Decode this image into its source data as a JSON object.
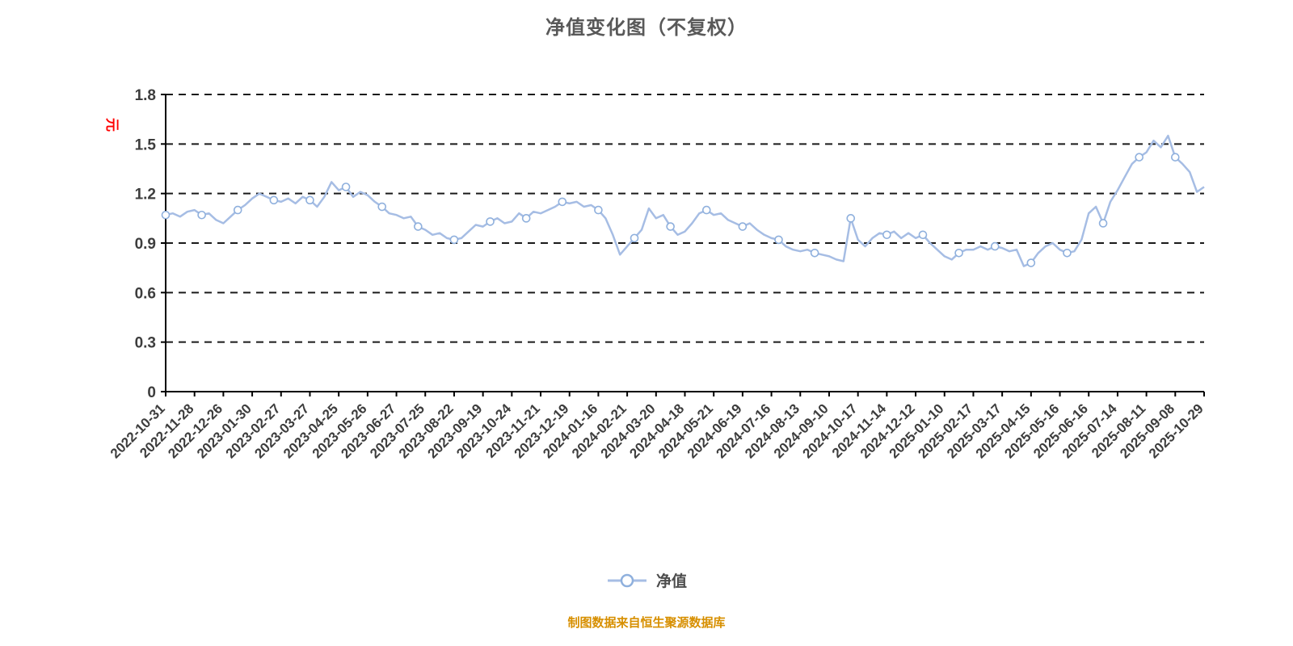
{
  "title": "净值变化图（不复权）",
  "legend": {
    "label": "净值"
  },
  "footer": "制图数据来自恒生聚源数据库",
  "y_axis": {
    "unit": "元"
  },
  "colors": {
    "line": "#a6bde4",
    "marker_fill": "#ffffff",
    "marker_stroke": "#8fb0dd",
    "axis": "#000000",
    "grid": "#1a1a1a",
    "tick_label": "#3d3d3d",
    "title": "#595959",
    "unit_label": "#ff0000",
    "footer": "#d78f00"
  },
  "chart_data": {
    "type": "line",
    "title": "净值变化图（不复权）",
    "ylabel": "元",
    "xlabel": "",
    "ylim": [
      0,
      1.8
    ],
    "y_ticks": [
      0,
      0.3,
      0.6,
      0.9,
      1.2,
      1.5,
      1.8
    ],
    "grid": "dashed-horizontal",
    "legend_position": "bottom-center",
    "points_per_interval": 4,
    "marker_every": 5,
    "x_tick_labels": [
      "2022-10-31",
      "2022-11-28",
      "2022-12-26",
      "2023-01-30",
      "2023-02-27",
      "2023-03-27",
      "2023-04-25",
      "2023-05-26",
      "2023-06-27",
      "2023-07-25",
      "2023-08-22",
      "2023-09-19",
      "2023-10-24",
      "2023-11-21",
      "2023-12-19",
      "2024-01-16",
      "2024-02-21",
      "2024-03-20",
      "2024-04-18",
      "2024-05-21",
      "2024-06-19",
      "2024-07-16",
      "2024-08-13",
      "2024-09-10",
      "2024-10-17",
      "2024-11-14",
      "2024-12-12",
      "2025-01-10",
      "2025-02-17",
      "2025-03-17",
      "2025-04-15",
      "2025-05-16",
      "2025-06-16",
      "2025-07-14",
      "2025-08-11",
      "2025-09-08",
      "2025-10-29"
    ],
    "series": [
      {
        "name": "净值",
        "values": [
          1.07,
          1.08,
          1.06,
          1.09,
          1.1,
          1.07,
          1.08,
          1.04,
          1.02,
          1.06,
          1.1,
          1.13,
          1.17,
          1.2,
          1.18,
          1.16,
          1.15,
          1.17,
          1.14,
          1.18,
          1.16,
          1.12,
          1.18,
          1.27,
          1.22,
          1.24,
          1.18,
          1.21,
          1.19,
          1.15,
          1.12,
          1.08,
          1.07,
          1.05,
          1.06,
          1.0,
          0.98,
          0.95,
          0.96,
          0.93,
          0.92,
          0.93,
          0.97,
          1.01,
          1.0,
          1.03,
          1.05,
          1.02,
          1.03,
          1.08,
          1.05,
          1.09,
          1.08,
          1.1,
          1.12,
          1.15,
          1.14,
          1.15,
          1.12,
          1.13,
          1.1,
          1.05,
          0.95,
          0.83,
          0.88,
          0.93,
          0.98,
          1.11,
          1.05,
          1.07,
          1.0,
          0.95,
          0.97,
          1.02,
          1.08,
          1.1,
          1.07,
          1.08,
          1.04,
          1.02,
          1.0,
          1.02,
          0.98,
          0.95,
          0.93,
          0.92,
          0.88,
          0.86,
          0.85,
          0.86,
          0.84,
          0.83,
          0.82,
          0.8,
          0.79,
          1.05,
          0.92,
          0.88,
          0.93,
          0.96,
          0.95,
          0.97,
          0.93,
          0.96,
          0.93,
          0.95,
          0.9,
          0.86,
          0.82,
          0.8,
          0.84,
          0.86,
          0.86,
          0.88,
          0.86,
          0.88,
          0.87,
          0.85,
          0.86,
          0.76,
          0.78,
          0.84,
          0.88,
          0.9,
          0.86,
          0.84,
          0.85,
          0.92,
          1.08,
          1.12,
          1.02,
          1.15,
          1.22,
          1.3,
          1.38,
          1.42,
          1.45,
          1.52,
          1.48,
          1.55,
          1.42,
          1.38,
          1.33,
          1.21,
          1.24
        ]
      }
    ]
  }
}
